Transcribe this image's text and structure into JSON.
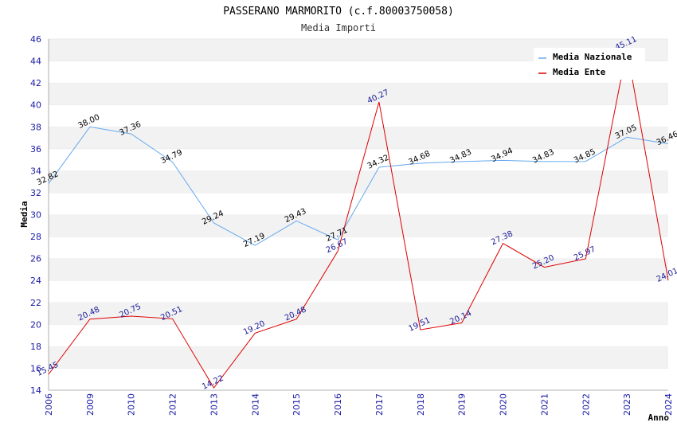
{
  "chart_data": {
    "type": "line",
    "title": "PASSERANO MARMORITO (c.f.80003750058)",
    "subtitle": "Media Importi",
    "xlabel": "Anno",
    "ylabel": "Media",
    "categories": [
      "2006",
      "2009",
      "2010",
      "2012",
      "2013",
      "2014",
      "2015",
      "2016",
      "2017",
      "2018",
      "2019",
      "2020",
      "2021",
      "2022",
      "2023",
      "2024"
    ],
    "ylim": [
      14,
      46
    ],
    "yticks": [
      14,
      16,
      18,
      20,
      22,
      24,
      26,
      28,
      30,
      32,
      34,
      36,
      38,
      40,
      42,
      44,
      46
    ],
    "grid": true,
    "legend_position": "top-right",
    "series": [
      {
        "name": "Media Nazionale",
        "color": "#66aaee",
        "label_color": "#000000",
        "values": [
          32.82,
          38.0,
          37.36,
          34.79,
          29.24,
          27.19,
          29.43,
          27.71,
          34.32,
          34.68,
          34.83,
          34.94,
          34.83,
          34.85,
          37.05,
          36.46
        ],
        "labels": [
          "32.82",
          "38.00",
          "37.36",
          "34.79",
          "29.24",
          "27.19",
          "29.43",
          "27.71",
          "34.32",
          "34.68",
          "34.83",
          "34.94",
          "34.83",
          "34.85",
          "37.05",
          "36.46"
        ]
      },
      {
        "name": "Media Ente",
        "color": "#dd0000",
        "label_color": "#1a1a99",
        "values": [
          15.45,
          20.48,
          20.75,
          20.51,
          14.22,
          19.2,
          20.48,
          26.67,
          40.27,
          19.51,
          20.14,
          27.38,
          25.2,
          25.97,
          45.11,
          24.01
        ],
        "labels": [
          "15.45",
          "20.48",
          "20.75",
          "20.51",
          "14.22",
          "19.20",
          "20.48",
          "26.67",
          "40.27",
          "19.51",
          "20.14",
          "27.38",
          "25.20",
          "25.97",
          "45.11",
          "24.01"
        ]
      }
    ]
  }
}
